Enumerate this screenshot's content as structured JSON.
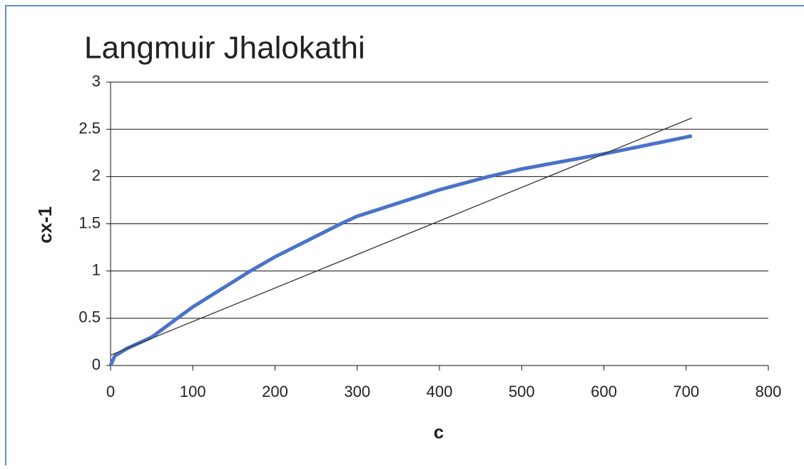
{
  "chart_data": {
    "type": "line",
    "title": "Langmuir Jhalokathi",
    "x_label": "c",
    "y_label": "cx-1",
    "series": [
      {
        "color": "#4a72c9",
        "x": [
          0,
          5,
          20,
          50,
          100,
          170,
          200,
          280,
          300,
          400,
          460,
          500,
          600,
          707
        ],
        "values": [
          0,
          0.1,
          0.18,
          0.3,
          0.62,
          1.0,
          1.15,
          1.5,
          1.58,
          1.86,
          2.0,
          2.08,
          2.24,
          2.43
        ]
      },
      {
        "color": "#333333",
        "x": [
          0,
          707
        ],
        "values": [
          0.11,
          2.62
        ]
      }
    ],
    "xlim": [
      0,
      800
    ],
    "xticks": [
      0,
      100,
      200,
      300,
      400,
      500,
      600,
      700,
      800
    ],
    "ylim": [
      0,
      3
    ],
    "yticks": [
      0,
      0.5,
      1,
      1.5,
      2,
      2.5,
      3
    ],
    "grid": true
  }
}
